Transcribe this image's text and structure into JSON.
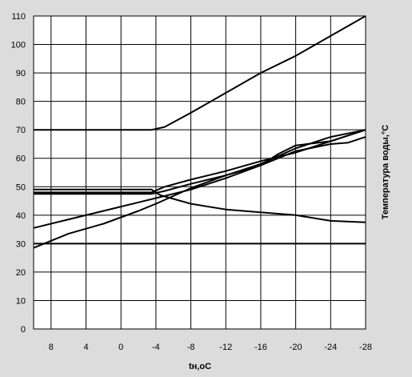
{
  "chart_data": {
    "type": "line",
    "xlabel": "tн,oC",
    "ylabel": "Температура воды,°C",
    "x_ticks": [
      "8",
      "4",
      "0",
      "-4",
      "-8",
      "-12",
      "-16",
      "-20",
      "-24",
      "-28"
    ],
    "xlim": [
      10,
      -28
    ],
    "ylim": [
      0,
      110
    ],
    "y_ticks": [
      0,
      10,
      20,
      30,
      40,
      50,
      60,
      70,
      80,
      90,
      100,
      110
    ],
    "grid": true,
    "series": [
      {
        "x": [
          10,
          -3.5,
          -5,
          -8,
          -12,
          -16,
          -20,
          -24,
          -28
        ],
        "y": [
          70,
          70,
          71,
          76,
          83,
          90,
          96,
          103,
          110
        ]
      },
      {
        "x": [
          10,
          -3.5,
          -4.5,
          -8,
          -12,
          -16,
          -20,
          -24,
          -28
        ],
        "y": [
          49,
          49,
          47,
          44,
          42,
          41,
          40,
          38,
          37.5
        ]
      },
      {
        "x": [
          10,
          -3.5,
          -5,
          -8,
          -12,
          -16,
          -20,
          -24,
          -28
        ],
        "y": [
          48,
          48,
          50,
          52.5,
          55.5,
          59,
          62,
          66,
          70
        ]
      },
      {
        "x": [
          10,
          -3.5,
          -5,
          -8,
          -12,
          -16,
          -20,
          -24,
          -26,
          -28
        ],
        "y": [
          47.5,
          47.5,
          48.5,
          51,
          54,
          57.5,
          62.5,
          65,
          65.5,
          67.5
        ]
      },
      {
        "x": [
          10,
          6,
          2,
          -2,
          -4,
          -8,
          -12,
          -16,
          -18,
          -20,
          -24,
          -28
        ],
        "y": [
          35.5,
          38.5,
          41.5,
          44.5,
          46,
          49,
          53,
          57.5,
          61.5,
          64.5,
          66,
          70
        ]
      },
      {
        "x": [
          10,
          6,
          2,
          -2,
          -4,
          -8,
          -12,
          -16,
          -20,
          -24,
          -28
        ],
        "y": [
          28.5,
          33.5,
          37,
          41.5,
          44,
          49.5,
          54,
          58,
          63.5,
          67.5,
          70
        ]
      },
      {
        "x": [
          10,
          -28
        ],
        "y": [
          30,
          30
        ]
      }
    ]
  }
}
